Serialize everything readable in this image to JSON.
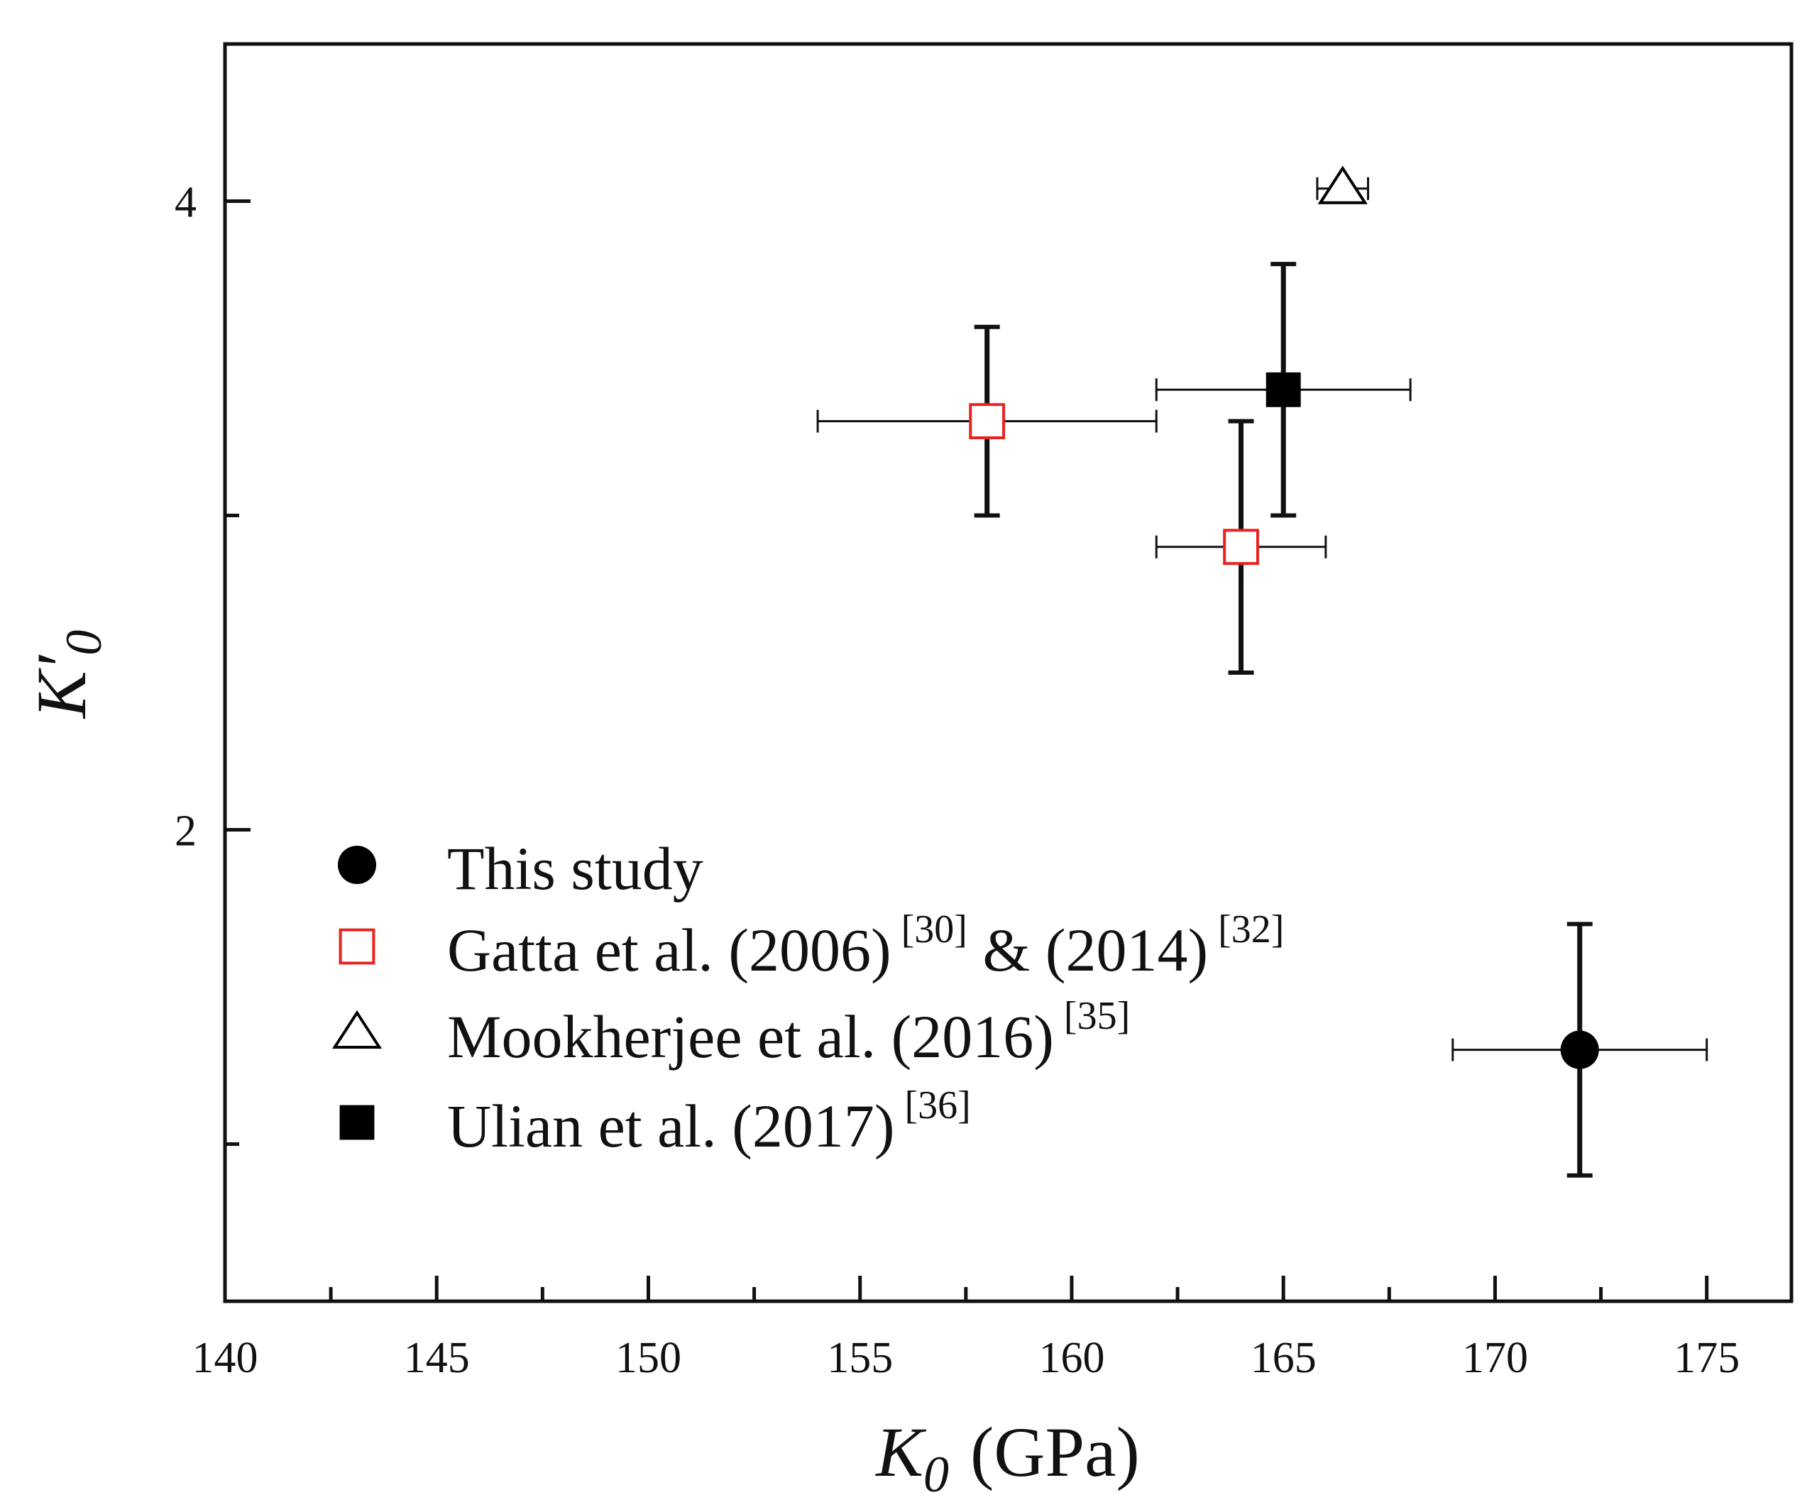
{
  "chart_data": {
    "type": "scatter",
    "title": "",
    "xlabel": {
      "symbol": "K",
      "subscript": "0",
      "unit": "(GPa)"
    },
    "ylabel": {
      "symbol": "K′",
      "subscript": "0"
    },
    "xlim": [
      140,
      177
    ],
    "ylim": [
      0.5,
      4.5
    ],
    "x_ticks": [
      140,
      145,
      150,
      155,
      160,
      165,
      170,
      175
    ],
    "x_minor_ticks": [
      142.5,
      147.5,
      152.5,
      157.5,
      162.5,
      167.5,
      172.5
    ],
    "y_ticks": [
      2,
      4
    ],
    "y_minor_ticks": [
      1,
      3
    ],
    "grid": false,
    "legend_position": "bottom-left",
    "series": [
      {
        "name": "This study",
        "ref": "",
        "marker": "circle-filled",
        "color": "#000000",
        "points": [
          {
            "x": 172.0,
            "y": 1.3,
            "xerr": 3.0,
            "yerr": 0.4
          }
        ]
      },
      {
        "name": "Gatta et al. (2006)",
        "ref": "[30]",
        "name2": " & (2014)",
        "ref2": "[32]",
        "marker": "square-open",
        "color": "#e8231f",
        "points": [
          {
            "x": 158.0,
            "y": 3.3,
            "xerr": 4.0,
            "yerr": 0.3
          },
          {
            "x": 164.0,
            "y": 2.9,
            "xerr": 2.0,
            "yerr": 0.4
          }
        ]
      },
      {
        "name": "Mookherjee et al. (2016)",
        "ref": "[35]",
        "marker": "triangle-open",
        "color": "#000000",
        "points": [
          {
            "x": 166.4,
            "y": 4.04,
            "xerr": 0.6,
            "yerr": 0.0
          }
        ]
      },
      {
        "name": "Ulian et al. (2017)",
        "ref": "[36]",
        "marker": "square-filled",
        "color": "#000000",
        "points": [
          {
            "x": 165.0,
            "y": 3.4,
            "xerr": 3.0,
            "yerr": 0.4
          }
        ]
      }
    ]
  }
}
